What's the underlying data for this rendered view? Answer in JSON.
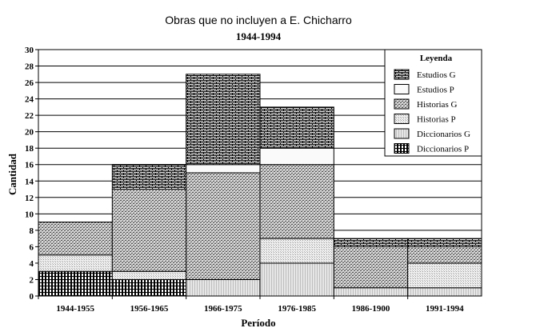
{
  "chart_data": {
    "type": "bar",
    "stacked": true,
    "title": "Obras que no incluyen a E. Chicharro",
    "subtitle": "1944-1994",
    "xlabel": "Período",
    "ylabel": "Cantidad",
    "ylim": [
      0,
      30
    ],
    "yticks": [
      0,
      2,
      4,
      6,
      8,
      10,
      12,
      14,
      16,
      18,
      20,
      22,
      24,
      26,
      28,
      30
    ],
    "grid": true,
    "legend_title": "Leyenda",
    "legend_position": "top-right",
    "categories": [
      "1944-1955",
      "1956-1965",
      "1966-1975",
      "1976-1985",
      "1986-1900",
      "1991-1994"
    ],
    "series": [
      {
        "name": "Diccionarios P",
        "pattern": "vstripe",
        "values": [
          3,
          2,
          0,
          0,
          0,
          0
        ]
      },
      {
        "name": "Diccionarios G",
        "pattern": "lightvert",
        "values": [
          0,
          0,
          2,
          4,
          1,
          1
        ]
      },
      {
        "name": "Historias P",
        "pattern": "dots",
        "values": [
          2,
          1,
          0,
          3,
          0,
          3
        ]
      },
      {
        "name": "Historias G",
        "pattern": "weave",
        "values": [
          4,
          10,
          13,
          9,
          5,
          2
        ]
      },
      {
        "name": "Estudios P",
        "pattern": "blank",
        "values": [
          0,
          0,
          1,
          2,
          0,
          0
        ]
      },
      {
        "name": "Estudios G",
        "pattern": "brick",
        "values": [
          0,
          3,
          11,
          5,
          1,
          1
        ]
      }
    ],
    "legend_order": [
      "Estudios G",
      "Estudios P",
      "Historias G",
      "Historias P",
      "Diccionarios G",
      "Diccionarios P"
    ]
  }
}
